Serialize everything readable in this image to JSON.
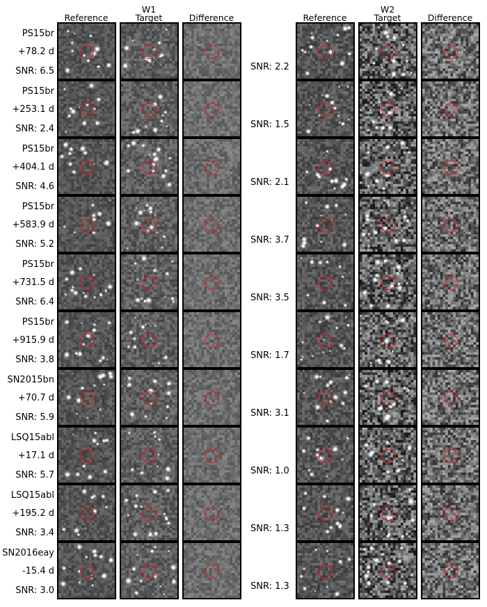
{
  "bands": [
    {
      "title": "W1",
      "columns": [
        "Reference",
        "Target",
        "Difference"
      ]
    },
    {
      "title": "W2",
      "columns": [
        "Reference",
        "Target",
        "Difference"
      ]
    }
  ],
  "rows": [
    {
      "name": "PS15br",
      "phase": "+78.2 d",
      "snr_w1": "SNR: 6.5",
      "snr_w2": "SNR: 2.2"
    },
    {
      "name": "PS15br",
      "phase": "+253.1 d",
      "snr_w1": "SNR: 2.4",
      "snr_w2": "SNR: 1.5"
    },
    {
      "name": "PS15br",
      "phase": "+404.1 d",
      "snr_w1": "SNR: 4.6",
      "snr_w2": "SNR: 2.1"
    },
    {
      "name": "PS15br",
      "phase": "+583.9 d",
      "snr_w1": "SNR: 5.2",
      "snr_w2": "SNR: 3.7"
    },
    {
      "name": "PS15br",
      "phase": "+731.5 d",
      "snr_w1": "SNR: 6.4",
      "snr_w2": "SNR: 3.5"
    },
    {
      "name": "PS15br",
      "phase": "+915.9 d",
      "snr_w1": "SNR: 3.8",
      "snr_w2": "SNR: 1.7"
    },
    {
      "name": "SN2015bn",
      "phase": "+70.7 d",
      "snr_w1": "SNR: 5.9",
      "snr_w2": "SNR: 3.1"
    },
    {
      "name": "LSQ15abl",
      "phase": "+17.1 d",
      "snr_w1": "SNR: 5.7",
      "snr_w2": "SNR: 1.0"
    },
    {
      "name": "LSQ15abl",
      "phase": "+195.2 d",
      "snr_w1": "SNR: 3.4",
      "snr_w2": "SNR: 1.3"
    },
    {
      "name": "SN2016eay",
      "phase": "-15.4 d",
      "snr_w1": "SNR: 3.0",
      "snr_w2": "SNR: 1.3"
    }
  ],
  "colors": {
    "circle": "#e41a1c",
    "panel_border": "#000000"
  }
}
